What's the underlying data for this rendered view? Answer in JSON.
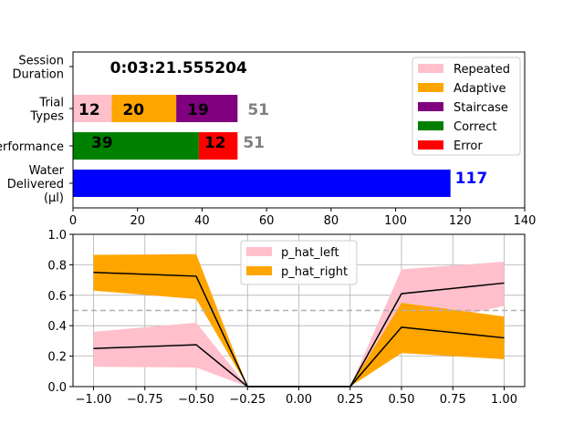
{
  "chart_data": [
    {
      "type": "bar",
      "orientation": "horizontal",
      "stacked": true,
      "categories": [
        "Session\nDuration",
        "Trial\nTypes",
        "Performance",
        "Water\nDelivered\n(µl)"
      ],
      "session_duration": "0:03:21.555204",
      "trial_types": {
        "segments": [
          12,
          20,
          19
        ],
        "total": 51
      },
      "performance": {
        "segments": [
          39,
          12
        ],
        "total": 51
      },
      "water_delivered": 117,
      "xlim": [
        0,
        140
      ],
      "xticks": [
        0,
        20,
        40,
        60,
        80,
        100,
        120,
        140
      ],
      "grid": false,
      "legend": {
        "placement": "top-right",
        "entries": [
          {
            "name": "Repeated",
            "color": "#ffc0cb"
          },
          {
            "name": "Adaptive",
            "color": "#ffa500"
          },
          {
            "name": "Staircase",
            "color": "#800080"
          },
          {
            "name": "Correct",
            "color": "#008000"
          },
          {
            "name": "Error",
            "color": "#ff0000"
          }
        ]
      },
      "colors": {
        "total_label": "#808080",
        "water": "#0000ff"
      }
    },
    {
      "type": "area",
      "x": [
        -1.0,
        -0.5,
        -0.25,
        0.25,
        0.5,
        1.0
      ],
      "series": [
        {
          "name": "p_hat_left",
          "color": "#ffc0cb",
          "mean": [
            0.25,
            0.275,
            0.0,
            0.0,
            0.61,
            0.68
          ],
          "lower": [
            0.13,
            0.125,
            0.0,
            0.0,
            0.38,
            0.53
          ],
          "upper": [
            0.36,
            0.42,
            0.0,
            0.0,
            0.77,
            0.82
          ]
        },
        {
          "name": "p_hat_right",
          "color": "#ffa500",
          "mean": [
            0.75,
            0.725,
            0.0,
            0.0,
            0.39,
            0.32
          ],
          "lower": [
            0.63,
            0.575,
            0.0,
            0.0,
            0.22,
            0.18
          ],
          "upper": [
            0.865,
            0.87,
            0.0,
            0.0,
            0.55,
            0.46
          ]
        }
      ],
      "reference_line": 0.5,
      "xlim": [
        -1.1,
        1.1
      ],
      "ylim": [
        0.0,
        1.0
      ],
      "xticks": [
        "−1.00",
        "−0.75",
        "−0.50",
        "−0.25",
        "0.00",
        "0.25",
        "0.50",
        "0.75",
        "1.00"
      ],
      "yticks": [
        "0.0",
        "0.2",
        "0.4",
        "0.6",
        "0.8",
        "1.0"
      ],
      "grid": true,
      "legend": {
        "placement": "top-center"
      }
    }
  ]
}
